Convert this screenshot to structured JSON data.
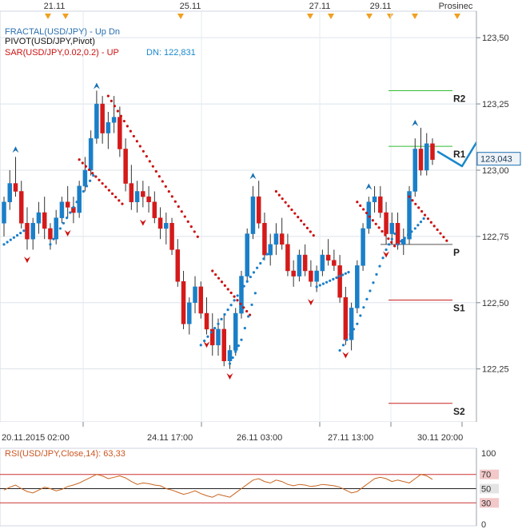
{
  "chart_data": {
    "type": "candlestick",
    "symbol": "USD/JPY",
    "top_dates": [
      "21.11",
      "25.11",
      "27.11",
      "29.11",
      "Prosinec"
    ],
    "bottom_dates": [
      "20.11.2015 02:00",
      "24.11 17:00",
      "26.11 03:00",
      "27.11 13:00",
      "30.11 20:00"
    ],
    "y_ticks": [
      "123,50",
      "123,25",
      "123,00",
      "122,75",
      "122,50",
      "122,25"
    ],
    "y_tick_values": [
      123.5,
      123.25,
      123.0,
      122.75,
      122.5,
      122.25
    ],
    "ylim": [
      122.05,
      123.6
    ],
    "current_price": {
      "label": "123,043",
      "value": 123.043
    },
    "legend": [
      {
        "text": "FRACTAL(USD/JPY)  -  Up  Dn",
        "color": "#2a6fb0"
      },
      {
        "text": "PIVOT(USD/JPY,Pivot)",
        "color": "#111111"
      },
      {
        "text": "SAR(USD/JPY,0.02,0.2)  -  UP",
        "color": "#cc1111"
      },
      {
        "text": "DN: 122,831",
        "color": "#1a88cc"
      }
    ],
    "pivot_levels": [
      {
        "name": "R2",
        "value": 123.3,
        "color": "#33bb33"
      },
      {
        "name": "R1",
        "value": 123.09,
        "color": "#33bb33"
      },
      {
        "name": "P",
        "value": 122.72,
        "color": "#555555"
      },
      {
        "name": "S1",
        "value": 122.51,
        "color": "#cc2222"
      },
      {
        "name": "S2",
        "value": 122.12,
        "color": "#cc2222"
      }
    ],
    "candles": [
      [
        122.8,
        122.9,
        122.75,
        122.88
      ],
      [
        122.88,
        123.0,
        122.85,
        122.95
      ],
      [
        122.95,
        123.05,
        122.9,
        122.92
      ],
      [
        122.92,
        122.96,
        122.78,
        122.8
      ],
      [
        122.8,
        122.86,
        122.7,
        122.74
      ],
      [
        122.74,
        122.82,
        122.7,
        122.8
      ],
      [
        122.8,
        122.88,
        122.76,
        122.84
      ],
      [
        122.84,
        122.9,
        122.74,
        122.78
      ],
      [
        122.78,
        122.8,
        122.7,
        122.74
      ],
      [
        122.74,
        122.85,
        122.72,
        122.82
      ],
      [
        122.82,
        122.9,
        122.8,
        122.88
      ],
      [
        122.88,
        122.94,
        122.82,
        122.86
      ],
      [
        122.86,
        122.9,
        122.8,
        122.84
      ],
      [
        122.84,
        122.96,
        122.82,
        122.94
      ],
      [
        122.94,
        123.05,
        122.92,
        123.0
      ],
      [
        123.0,
        123.15,
        122.98,
        123.12
      ],
      [
        123.12,
        123.3,
        123.1,
        123.25
      ],
      [
        123.25,
        123.28,
        123.1,
        123.14
      ],
      [
        123.14,
        123.22,
        123.08,
        123.18
      ],
      [
        123.18,
        123.28,
        123.14,
        123.2
      ],
      [
        123.2,
        123.24,
        123.05,
        123.08
      ],
      [
        123.08,
        123.12,
        122.92,
        122.95
      ],
      [
        122.95,
        123.02,
        122.85,
        122.88
      ],
      [
        122.88,
        122.96,
        122.84,
        122.92
      ],
      [
        122.92,
        122.96,
        122.86,
        122.9
      ],
      [
        122.9,
        122.94,
        122.84,
        122.88
      ],
      [
        122.88,
        122.92,
        122.8,
        122.82
      ],
      [
        122.82,
        122.86,
        122.74,
        122.78
      ],
      [
        122.78,
        122.84,
        122.72,
        122.8
      ],
      [
        122.8,
        122.82,
        122.68,
        122.7
      ],
      [
        122.7,
        122.74,
        122.56,
        122.58
      ],
      [
        122.58,
        122.62,
        122.4,
        122.42
      ],
      [
        122.42,
        122.52,
        122.38,
        122.5
      ],
      [
        122.5,
        122.6,
        122.46,
        122.56
      ],
      [
        122.56,
        122.58,
        122.44,
        122.46
      ],
      [
        122.46,
        122.52,
        122.38,
        122.4
      ],
      [
        122.4,
        122.46,
        122.3,
        122.34
      ],
      [
        122.34,
        122.44,
        122.3,
        122.4
      ],
      [
        122.4,
        122.46,
        122.26,
        122.28
      ],
      [
        122.28,
        122.34,
        122.25,
        122.32
      ],
      [
        122.32,
        122.48,
        122.3,
        122.46
      ],
      [
        122.46,
        122.62,
        122.44,
        122.6
      ],
      [
        122.6,
        122.78,
        122.58,
        122.76
      ],
      [
        122.76,
        122.94,
        122.74,
        122.9
      ],
      [
        122.9,
        122.96,
        122.78,
        122.8
      ],
      [
        122.8,
        122.84,
        122.66,
        122.68
      ],
      [
        122.68,
        122.76,
        122.64,
        122.72
      ],
      [
        122.72,
        122.8,
        122.68,
        122.76
      ],
      [
        122.76,
        122.82,
        122.7,
        122.72
      ],
      [
        122.72,
        122.76,
        122.6,
        122.62
      ],
      [
        122.62,
        122.66,
        122.56,
        122.6
      ],
      [
        122.6,
        122.7,
        122.58,
        122.68
      ],
      [
        122.68,
        122.72,
        122.6,
        122.62
      ],
      [
        122.62,
        122.66,
        122.56,
        122.58
      ],
      [
        122.58,
        122.64,
        122.54,
        122.62
      ],
      [
        122.62,
        122.7,
        122.6,
        122.68
      ],
      [
        122.68,
        122.74,
        122.64,
        122.66
      ],
      [
        122.66,
        122.7,
        122.62,
        122.64
      ],
      [
        122.64,
        122.68,
        122.5,
        122.52
      ],
      [
        122.52,
        122.56,
        122.34,
        122.36
      ],
      [
        122.36,
        122.5,
        122.32,
        122.48
      ],
      [
        122.48,
        122.66,
        122.46,
        122.64
      ],
      [
        122.64,
        122.8,
        122.62,
        122.78
      ],
      [
        122.78,
        122.9,
        122.76,
        122.88
      ],
      [
        122.88,
        122.94,
        122.84,
        122.9
      ],
      [
        122.9,
        122.94,
        122.82,
        122.84
      ],
      [
        122.84,
        122.88,
        122.72,
        122.76
      ],
      [
        122.76,
        122.84,
        122.72,
        122.8
      ],
      [
        122.8,
        122.84,
        122.7,
        122.72
      ],
      [
        122.72,
        122.78,
        122.68,
        122.74
      ],
      [
        122.74,
        122.94,
        122.72,
        122.92
      ],
      [
        122.92,
        123.12,
        122.9,
        123.08
      ],
      [
        123.08,
        123.16,
        122.98,
        123.0
      ],
      [
        123.0,
        123.14,
        122.98,
        123.1
      ],
      [
        123.1,
        123.12,
        123.02,
        123.04
      ]
    ],
    "sar_up": [
      [
        13,
        123.04
      ],
      [
        18,
        123.28
      ],
      [
        36,
        122.62
      ],
      [
        47,
        122.92
      ],
      [
        61,
        122.88
      ],
      [
        70,
        122.9
      ]
    ],
    "sar_dn": [
      [
        0,
        122.72
      ],
      [
        8,
        122.72
      ],
      [
        22,
        123.04
      ],
      [
        34,
        122.3
      ],
      [
        40,
        122.26
      ],
      [
        54,
        122.56
      ],
      [
        58,
        122.32
      ],
      [
        68,
        122.74
      ],
      [
        73,
        122.83
      ]
    ],
    "fractals_up": [
      [
        2,
        123.06
      ],
      [
        16,
        123.3
      ],
      [
        43,
        122.96
      ],
      [
        63,
        122.92
      ],
      [
        71,
        123.16
      ]
    ],
    "fractals_dn": [
      [
        4,
        122.68
      ],
      [
        11,
        122.78
      ],
      [
        24,
        122.82
      ],
      [
        35,
        122.36
      ],
      [
        39,
        122.24
      ],
      [
        53,
        122.52
      ],
      [
        59,
        122.32
      ],
      [
        66,
        122.7
      ]
    ],
    "annotation_arrow": true,
    "rsi": {
      "label": "RSI(USD/JPY,Close,14): 63,33",
      "ticks": [
        "100",
        "70",
        "50",
        "30",
        "0"
      ],
      "tick_values": [
        100,
        70,
        50,
        30,
        0
      ],
      "values": [
        48,
        52,
        55,
        50,
        46,
        44,
        48,
        52,
        50,
        47,
        49,
        53,
        55,
        58,
        62,
        66,
        70,
        68,
        64,
        66,
        68,
        65,
        60,
        56,
        58,
        57,
        55,
        54,
        50,
        48,
        45,
        42,
        44,
        47,
        43,
        40,
        38,
        42,
        40,
        38,
        44,
        50,
        56,
        62,
        64,
        60,
        58,
        62,
        60,
        56,
        54,
        56,
        55,
        53,
        54,
        56,
        55,
        54,
        52,
        48,
        44,
        46,
        52,
        58,
        64,
        66,
        64,
        60,
        62,
        60,
        58,
        64,
        70,
        68,
        63
      ]
    }
  }
}
